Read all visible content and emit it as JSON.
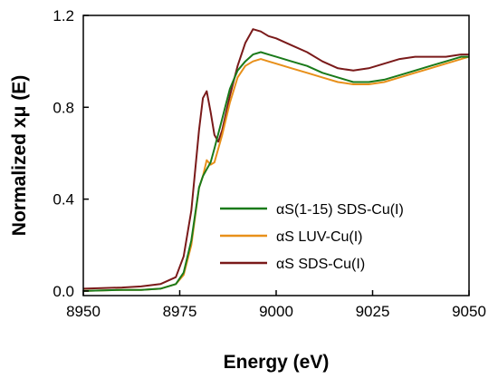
{
  "chart_data": {
    "type": "line",
    "xlabel": "Energy (eV)",
    "ylabel": "Normalized xμ (E)",
    "xlim": [
      8950,
      9050
    ],
    "ylim": [
      -0.02,
      1.2
    ],
    "xticks": [
      8950,
      8975,
      9000,
      9025,
      9050
    ],
    "xtick_labels": [
      "8950",
      "8975",
      "9000",
      "9025",
      "9050"
    ],
    "yticks": [
      0.0,
      0.4,
      0.8,
      1.2
    ],
    "ytick_labels": [
      "0.0",
      "0.4",
      "0.8",
      "1.2"
    ],
    "grid": false,
    "legend_position": "lower-right",
    "series": [
      {
        "name": "αS(1-15) SDS-Cu(I)",
        "color": "#1a7a1a",
        "points": [
          [
            8950,
            0.0
          ],
          [
            8960,
            0.005
          ],
          [
            8965,
            0.005
          ],
          [
            8970,
            0.01
          ],
          [
            8974,
            0.03
          ],
          [
            8976,
            0.08
          ],
          [
            8978,
            0.22
          ],
          [
            8980,
            0.45
          ],
          [
            8981,
            0.5
          ],
          [
            8982,
            0.53
          ],
          [
            8983,
            0.56
          ],
          [
            8984,
            0.62
          ],
          [
            8986,
            0.75
          ],
          [
            8988,
            0.88
          ],
          [
            8990,
            0.96
          ],
          [
            8992,
            1.0
          ],
          [
            8994,
            1.03
          ],
          [
            8996,
            1.04
          ],
          [
            8998,
            1.03
          ],
          [
            9000,
            1.02
          ],
          [
            9004,
            1.0
          ],
          [
            9008,
            0.98
          ],
          [
            9012,
            0.95
          ],
          [
            9016,
            0.93
          ],
          [
            9020,
            0.91
          ],
          [
            9024,
            0.91
          ],
          [
            9028,
            0.92
          ],
          [
            9032,
            0.94
          ],
          [
            9036,
            0.96
          ],
          [
            9040,
            0.98
          ],
          [
            9044,
            1.0
          ],
          [
            9048,
            1.02
          ],
          [
            9050,
            1.02
          ]
        ]
      },
      {
        "name": "αS LUV-Cu(I)",
        "color": "#e8901a",
        "points": [
          [
            8950,
            0.0
          ],
          [
            8960,
            0.005
          ],
          [
            8965,
            0.005
          ],
          [
            8970,
            0.01
          ],
          [
            8974,
            0.03
          ],
          [
            8976,
            0.07
          ],
          [
            8978,
            0.2
          ],
          [
            8980,
            0.45
          ],
          [
            8981,
            0.5
          ],
          [
            8982,
            0.57
          ],
          [
            8983,
            0.55
          ],
          [
            8984,
            0.56
          ],
          [
            8986,
            0.68
          ],
          [
            8988,
            0.82
          ],
          [
            8990,
            0.93
          ],
          [
            8992,
            0.98
          ],
          [
            8994,
            1.0
          ],
          [
            8996,
            1.01
          ],
          [
            8998,
            1.0
          ],
          [
            9000,
            0.99
          ],
          [
            9004,
            0.97
          ],
          [
            9008,
            0.95
          ],
          [
            9012,
            0.93
          ],
          [
            9016,
            0.91
          ],
          [
            9020,
            0.9
          ],
          [
            9024,
            0.9
          ],
          [
            9028,
            0.91
          ],
          [
            9032,
            0.93
          ],
          [
            9036,
            0.95
          ],
          [
            9040,
            0.97
          ],
          [
            9044,
            0.99
          ],
          [
            9048,
            1.01
          ],
          [
            9050,
            1.02
          ]
        ]
      },
      {
        "name": "αS SDS-Cu(I)",
        "color": "#7a1a1a",
        "points": [
          [
            8950,
            0.01
          ],
          [
            8960,
            0.015
          ],
          [
            8965,
            0.02
          ],
          [
            8970,
            0.03
          ],
          [
            8974,
            0.06
          ],
          [
            8976,
            0.15
          ],
          [
            8978,
            0.35
          ],
          [
            8980,
            0.7
          ],
          [
            8981,
            0.84
          ],
          [
            8982,
            0.87
          ],
          [
            8983,
            0.78
          ],
          [
            8984,
            0.68
          ],
          [
            8985,
            0.65
          ],
          [
            8986,
            0.7
          ],
          [
            8988,
            0.85
          ],
          [
            8990,
            0.98
          ],
          [
            8992,
            1.08
          ],
          [
            8994,
            1.14
          ],
          [
            8996,
            1.13
          ],
          [
            8998,
            1.11
          ],
          [
            9000,
            1.1
          ],
          [
            9004,
            1.07
          ],
          [
            9008,
            1.04
          ],
          [
            9012,
            1.0
          ],
          [
            9016,
            0.97
          ],
          [
            9020,
            0.96
          ],
          [
            9024,
            0.97
          ],
          [
            9028,
            0.99
          ],
          [
            9032,
            1.01
          ],
          [
            9036,
            1.02
          ],
          [
            9040,
            1.02
          ],
          [
            9044,
            1.02
          ],
          [
            9048,
            1.03
          ],
          [
            9050,
            1.03
          ]
        ]
      }
    ]
  }
}
